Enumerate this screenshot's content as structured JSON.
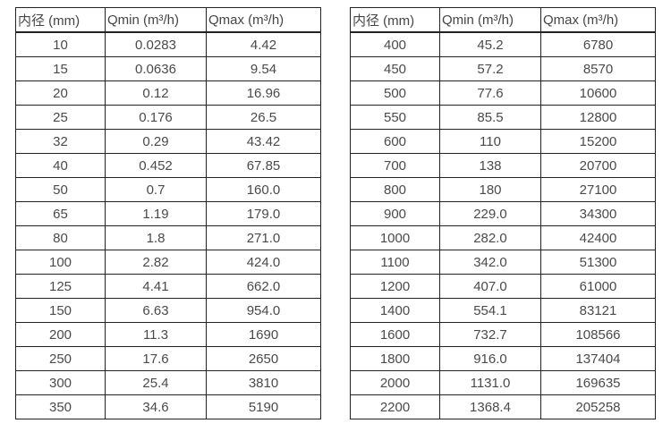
{
  "tables": [
    {
      "name": "small-diameter-flow-table",
      "headers": [
        "内径 (mm)",
        "Qmin (m³/h)",
        "Qmax (m³/h)"
      ],
      "rows": [
        [
          "10",
          "0.0283",
          "4.42"
        ],
        [
          "15",
          "0.0636",
          "9.54"
        ],
        [
          "20",
          "0.12",
          "16.96"
        ],
        [
          "25",
          "0.176",
          "26.5"
        ],
        [
          "32",
          "0.29",
          "43.42"
        ],
        [
          "40",
          "0.452",
          "67.85"
        ],
        [
          "50",
          "0.7",
          "160.0"
        ],
        [
          "65",
          "1.19",
          "179.0"
        ],
        [
          "80",
          "1.8",
          "271.0"
        ],
        [
          "100",
          "2.82",
          "424.0"
        ],
        [
          "125",
          "4.41",
          "662.0"
        ],
        [
          "150",
          "6.63",
          "954.0"
        ],
        [
          "200",
          "11.3",
          "1690"
        ],
        [
          "250",
          "17.6",
          "2650"
        ],
        [
          "300",
          "25.4",
          "3810"
        ],
        [
          "350",
          "34.6",
          "5190"
        ]
      ]
    },
    {
      "name": "large-diameter-flow-table",
      "headers": [
        "内径 (mm)",
        "Qmin (m³/h)",
        "Qmax (m³/h)"
      ],
      "rows": [
        [
          "400",
          "45.2",
          "6780"
        ],
        [
          "450",
          "57.2",
          "8570"
        ],
        [
          "500",
          "77.6",
          "10600"
        ],
        [
          "550",
          "85.5",
          "12800"
        ],
        [
          "600",
          "110",
          "15200"
        ],
        [
          "700",
          "138",
          "20700"
        ],
        [
          "800",
          "180",
          "27100"
        ],
        [
          "900",
          "229.0",
          "34300"
        ],
        [
          "1000",
          "282.0",
          "42400"
        ],
        [
          "1100",
          "342.0",
          "51300"
        ],
        [
          "1200",
          "407.0",
          "61000"
        ],
        [
          "1400",
          "554.1",
          "83121"
        ],
        [
          "1600",
          "732.7",
          "108566"
        ],
        [
          "1800",
          "916.0",
          "137404"
        ],
        [
          "2000",
          "1131.0",
          "169635"
        ],
        [
          "2200",
          "1368.4",
          "205258"
        ]
      ]
    }
  ],
  "colors": {
    "border": "#222222",
    "text": "#4a4a4a",
    "background": "#ffffff"
  }
}
